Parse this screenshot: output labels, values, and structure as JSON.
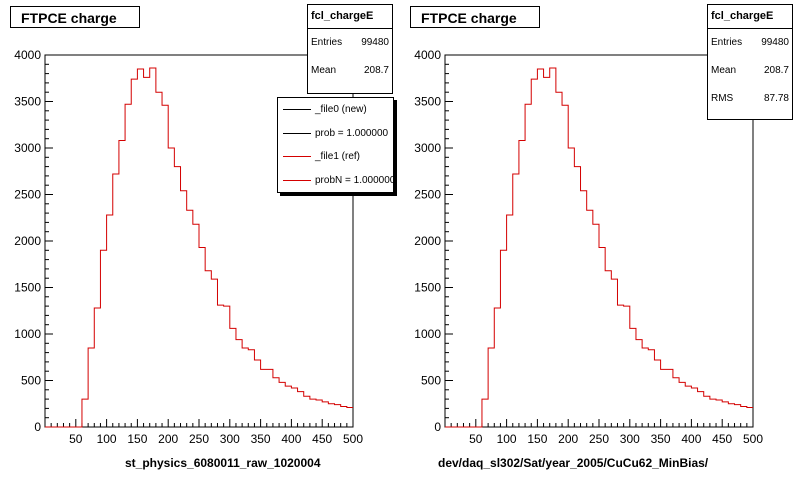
{
  "chart_data": [
    {
      "type": "histogram",
      "title": "FTPCE charge",
      "xlabel": "st_physics_6080011_raw_1020004",
      "ylabel": "",
      "xlim": [
        0,
        500
      ],
      "ylim": [
        0,
        4000
      ],
      "xticks": [
        50,
        100,
        150,
        200,
        250,
        300,
        350,
        400,
        450,
        500
      ],
      "yticks": [
        0,
        500,
        1000,
        1500,
        2000,
        2500,
        3000,
        3500,
        4000
      ],
      "grid": true,
      "bin_width": 10,
      "x": [
        0,
        10,
        20,
        30,
        40,
        50,
        60,
        70,
        80,
        90,
        100,
        110,
        120,
        130,
        140,
        150,
        160,
        170,
        180,
        190,
        200,
        210,
        220,
        230,
        240,
        250,
        260,
        270,
        280,
        290,
        300,
        310,
        320,
        330,
        340,
        350,
        360,
        370,
        380,
        390,
        400,
        410,
        420,
        430,
        440,
        450,
        460,
        470,
        480,
        490
      ],
      "series": [
        {
          "name": "_file0 (new)",
          "color": "#000000",
          "values": [
            0,
            0,
            0,
            0,
            0,
            0,
            300,
            850,
            1280,
            1900,
            2280,
            2720,
            3080,
            3470,
            3740,
            3850,
            3760,
            3860,
            3600,
            3460,
            3000,
            2800,
            2540,
            2330,
            2180,
            1930,
            1680,
            1590,
            1310,
            1300,
            1060,
            940,
            850,
            830,
            720,
            620,
            620,
            530,
            480,
            440,
            420,
            380,
            330,
            300,
            290,
            270,
            250,
            240,
            220,
            210
          ]
        },
        {
          "name": "_file1 (ref)",
          "color": "#d40000",
          "values": [
            0,
            0,
            0,
            0,
            0,
            0,
            300,
            850,
            1280,
            1900,
            2280,
            2720,
            3080,
            3470,
            3740,
            3850,
            3760,
            3860,
            3600,
            3460,
            3000,
            2800,
            2540,
            2330,
            2180,
            1930,
            1680,
            1590,
            1310,
            1300,
            1060,
            940,
            850,
            830,
            720,
            620,
            620,
            530,
            480,
            440,
            420,
            380,
            330,
            300,
            290,
            270,
            250,
            240,
            220,
            210
          ]
        }
      ],
      "stats": {
        "title": "fcl_chargeE",
        "entries_label": "Entries",
        "entries": "99480",
        "mean_label": "Mean",
        "mean": "208.7"
      },
      "legend": {
        "placement": "right",
        "entries": [
          {
            "label": "_file0 (new)",
            "color": "#000000"
          },
          {
            "label": "prob = 1.000000",
            "color": "#000000"
          },
          {
            "label": "_file1 (ref)",
            "color": "#d40000"
          },
          {
            "label": "probN = 1.000000",
            "color": "#d40000"
          }
        ]
      }
    },
    {
      "type": "histogram",
      "title": "FTPCE charge",
      "xlabel": "dev/daq_sl302/Sat/year_2005/CuCu62_MinBias/",
      "ylabel": "",
      "xlim": [
        0,
        500
      ],
      "ylim": [
        0,
        4000
      ],
      "xticks": [
        50,
        100,
        150,
        200,
        250,
        300,
        350,
        400,
        450,
        500
      ],
      "yticks": [
        0,
        500,
        1000,
        1500,
        2000,
        2500,
        3000,
        3500,
        4000
      ],
      "grid": true,
      "bin_width": 10,
      "x": [
        0,
        10,
        20,
        30,
        40,
        50,
        60,
        70,
        80,
        90,
        100,
        110,
        120,
        130,
        140,
        150,
        160,
        170,
        180,
        190,
        200,
        210,
        220,
        230,
        240,
        250,
        260,
        270,
        280,
        290,
        300,
        310,
        320,
        330,
        340,
        350,
        360,
        370,
        380,
        390,
        400,
        410,
        420,
        430,
        440,
        450,
        460,
        470,
        480,
        490
      ],
      "series": [
        {
          "name": "",
          "color": "#d40000",
          "values": [
            0,
            0,
            0,
            0,
            0,
            0,
            300,
            850,
            1280,
            1900,
            2280,
            2720,
            3080,
            3470,
            3740,
            3850,
            3760,
            3860,
            3600,
            3460,
            3000,
            2800,
            2540,
            2330,
            2180,
            1930,
            1680,
            1590,
            1310,
            1300,
            1060,
            940,
            850,
            830,
            720,
            620,
            620,
            530,
            480,
            440,
            420,
            380,
            330,
            300,
            290,
            270,
            250,
            240,
            220,
            210
          ]
        }
      ],
      "stats": {
        "title": "fcl_chargeE",
        "entries_label": "Entries",
        "entries": "99480",
        "mean_label": "Mean",
        "mean": "208.7",
        "rms_label": "RMS",
        "rms": "87.78"
      }
    }
  ]
}
